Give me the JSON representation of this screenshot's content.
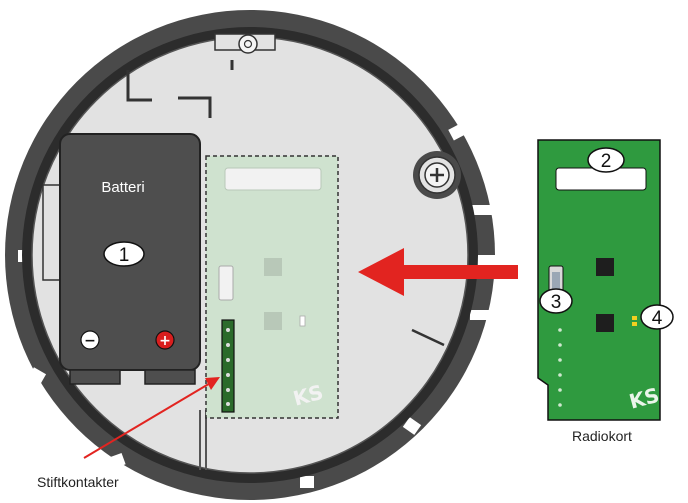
{
  "labels": {
    "battery": "Batteri",
    "radio_card": "Radiokort",
    "pin_contacts": "Stiftkontakter"
  },
  "callouts": {
    "battery_number": "1",
    "card_slot_number": "2",
    "button_number": "3",
    "led_number": "4"
  },
  "battery_terminals": {
    "negative": "−",
    "positive": "+"
  },
  "colors": {
    "base_plate": "#e2e2e2",
    "outer_ring": "#4a4a4a",
    "battery": "#4e4e4e",
    "radio_card": "#2f9a3f",
    "card_ghost": "#cfe2cf",
    "arrow": "#e22420",
    "positive_terminal": "#d81e1e"
  },
  "icons": {
    "screw": "screw-icon",
    "logo": "ks-logo-icon"
  }
}
